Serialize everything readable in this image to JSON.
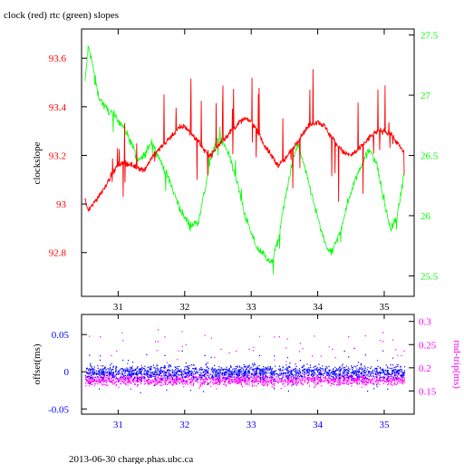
{
  "title": "clock (red) rtc (green) slopes",
  "footer": "2013-06-30 charge.phas.ubc.ca",
  "colors": {
    "clock": "#ff0000",
    "rtc": "#00ff00",
    "offset": "#0000ff",
    "rndtrip": "#ff00ff",
    "frame": "#000000"
  },
  "chart_data": [
    {
      "type": "line",
      "title": "clock (red) rtc (green) slopes",
      "ylabel": "clockslope",
      "xlim": [
        30.45,
        35.45
      ],
      "ylim": [
        92.62,
        93.72
      ],
      "y2lim": [
        25.33,
        27.55
      ],
      "x_ticks": [
        31,
        32,
        33,
        34,
        35
      ],
      "y_ticks": [
        92.8,
        93,
        93.2,
        93.4,
        93.6
      ],
      "y_tick_labels": [
        "92.8",
        "93",
        "93.2",
        "93.4",
        "93.6"
      ],
      "y2_ticks": [
        25.5,
        26,
        26.5,
        27,
        27.5
      ],
      "y2_tick_labels": [
        "25.5",
        "26",
        "26.5",
        "27",
        "27.5"
      ],
      "series": [
        {
          "axis": "left",
          "x": [
            30.5,
            30.55,
            30.6,
            30.7,
            30.8,
            30.9,
            31.0,
            31.1,
            31.2,
            31.3,
            31.4,
            31.5,
            31.6,
            31.7,
            31.8,
            31.9,
            32.0,
            32.1,
            32.2,
            32.3,
            32.4,
            32.5,
            32.6,
            32.7,
            32.8,
            32.9,
            33.0,
            33.1,
            33.2,
            33.3,
            33.4,
            33.5,
            33.6,
            33.7,
            33.8,
            33.9,
            34.0,
            34.1,
            34.2,
            34.3,
            34.4,
            34.5,
            34.6,
            34.7,
            34.8,
            34.9,
            35.0,
            35.1,
            35.2,
            35.3
          ],
          "values": [
            93.02,
            92.97,
            92.99,
            93.03,
            93.07,
            93.12,
            93.16,
            93.17,
            93.16,
            93.15,
            93.14,
            93.19,
            93.22,
            93.25,
            93.28,
            93.31,
            93.32,
            93.29,
            93.26,
            93.22,
            93.2,
            93.24,
            93.27,
            93.3,
            93.33,
            93.35,
            93.34,
            93.3,
            93.24,
            93.2,
            93.16,
            93.18,
            93.22,
            93.26,
            93.3,
            93.33,
            93.34,
            93.32,
            93.28,
            93.24,
            93.21,
            93.2,
            93.22,
            93.25,
            93.28,
            93.3,
            93.3,
            93.29,
            93.25,
            93.21
          ]
        },
        {
          "axis": "right",
          "x": [
            30.5,
            30.55,
            30.6,
            30.7,
            30.8,
            30.9,
            31.0,
            31.1,
            31.2,
            31.3,
            31.4,
            31.5,
            31.6,
            31.7,
            31.8,
            31.9,
            32.0,
            32.1,
            32.2,
            32.3,
            32.4,
            32.5,
            32.6,
            32.7,
            32.8,
            32.9,
            33.0,
            33.1,
            33.2,
            33.3,
            33.4,
            33.5,
            33.6,
            33.7,
            33.8,
            33.9,
            34.0,
            34.1,
            34.2,
            34.3,
            34.4,
            34.5,
            34.6,
            34.7,
            34.8,
            34.9,
            35.0,
            35.1,
            35.2,
            35.3
          ],
          "values": [
            27.1,
            27.4,
            27.3,
            27.0,
            26.9,
            26.85,
            26.8,
            26.72,
            26.6,
            26.45,
            26.5,
            26.62,
            26.5,
            26.38,
            26.25,
            26.1,
            25.98,
            25.92,
            25.95,
            26.2,
            26.5,
            26.65,
            26.6,
            26.45,
            26.25,
            26.02,
            25.85,
            25.72,
            25.68,
            25.6,
            25.78,
            26.1,
            26.4,
            26.6,
            26.4,
            26.2,
            25.98,
            25.78,
            25.68,
            25.8,
            26.0,
            26.2,
            26.35,
            26.48,
            26.55,
            26.4,
            26.1,
            25.88,
            26.0,
            26.35
          ]
        }
      ]
    },
    {
      "type": "scatter",
      "ylabel": "offset(ms)",
      "y2label": "rnd-trip(ms)",
      "xlim": [
        30.45,
        35.45
      ],
      "ylim": [
        -0.057,
        0.077
      ],
      "y2lim": [
        0.1,
        0.315
      ],
      "x_ticks": [
        31,
        32,
        33,
        34,
        35
      ],
      "y_ticks": [
        -0.05,
        0,
        0.05
      ],
      "y_tick_labels": [
        "-0.05",
        "0",
        "0.05"
      ],
      "y2_ticks": [
        0.15,
        0.2,
        0.25,
        0.3
      ],
      "y2_tick_labels": [
        "0.15",
        "0.2",
        "0.25",
        "0.3"
      ],
      "series": [
        {
          "axis": "left",
          "x_range": [
            30.5,
            35.3
          ],
          "center": 0.0,
          "spread": 0.02
        },
        {
          "axis": "right",
          "x_range": [
            30.5,
            35.3
          ],
          "center": 0.175,
          "spread": 0.05
        }
      ]
    }
  ]
}
